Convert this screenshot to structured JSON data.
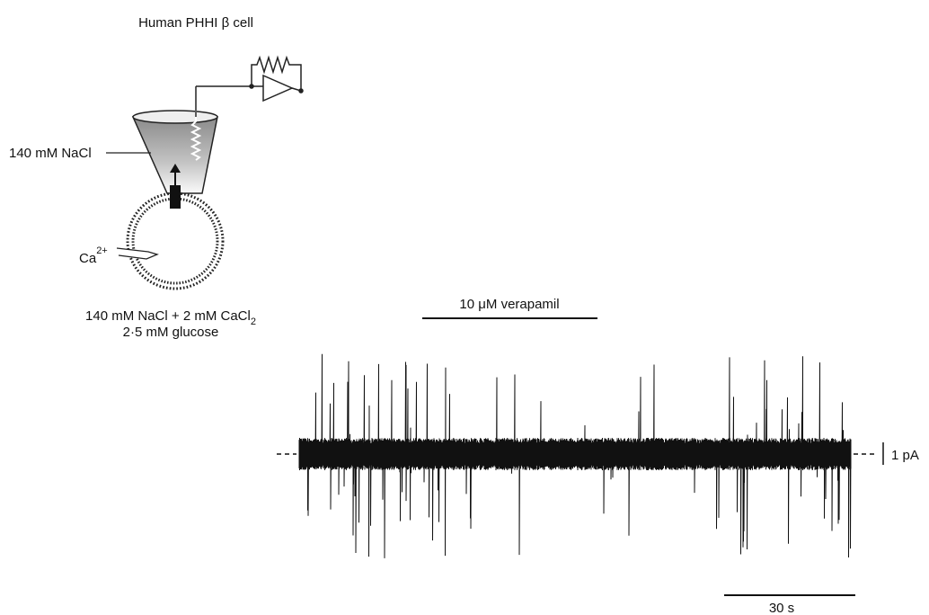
{
  "schematic": {
    "title": "Human PHHI β cell",
    "pipette_solution": "140 mM NaCl",
    "ion": {
      "base": "Ca",
      "superscript": "2+"
    },
    "bath_solution": {
      "line1": {
        "text": "140 mM NaCl + 2 mM CaCl",
        "subscript": "2"
      },
      "line2": "2·5 mM glucose"
    }
  },
  "recording": {
    "drug": "10 μM verapamil",
    "current_scale": "1 pA",
    "time_scale": "30 s"
  }
}
